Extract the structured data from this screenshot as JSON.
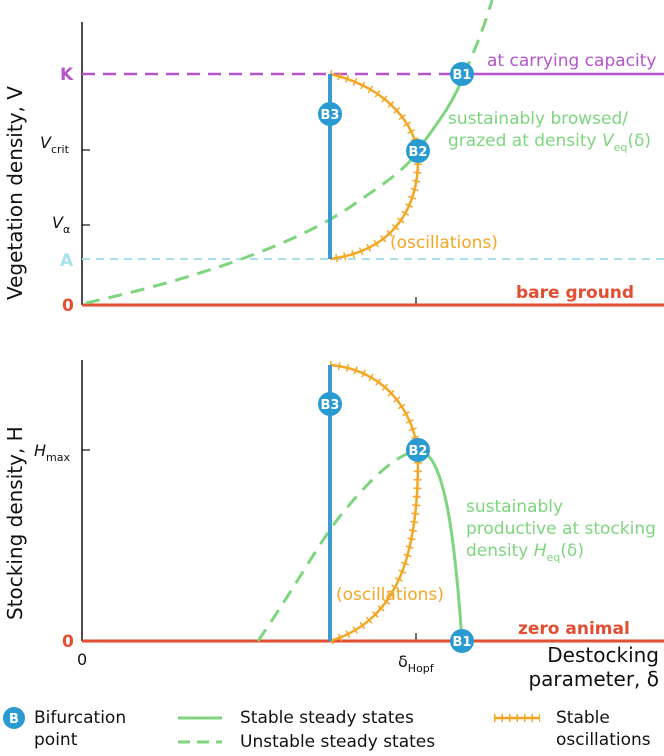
{
  "top_panel": {
    "y_axis_title": "Vegetation density, V",
    "y_ticks": {
      "K": "K",
      "Vcrit": "V",
      "Vcrit_sub": "crit",
      "Valpha": "V",
      "Valpha_sub": "α",
      "A": "A",
      "zero": "0"
    },
    "labels": {
      "carrying_capacity": "at carrying capacity",
      "browsed_line1": "sustainably browsed/",
      "browsed_line2_pre": "grazed at density ",
      "browsed_var": "V",
      "browsed_sub": "eq",
      "browsed_post": "(δ)",
      "oscillations": "(oscillations)",
      "bare_ground": "bare ground"
    }
  },
  "bottom_panel": {
    "y_axis_title": "Stocking density, H",
    "y_ticks": {
      "Hmax": "H",
      "Hmax_sub": "max",
      "zero": "0"
    },
    "labels": {
      "productive_line1": "sustainably",
      "productive_line2": "productive at stocking",
      "productive_line3_pre": "density ",
      "productive_var": "H",
      "productive_sub": "eq",
      "productive_post": "(δ)",
      "oscillations": "(oscillations)",
      "zero_animal": "zero animal"
    }
  },
  "x_axis": {
    "zero": "0",
    "hopf": "δ",
    "hopf_sub": "Hopf",
    "title_line1": "Destocking",
    "title_line2": "parameter, δ"
  },
  "bifurcations": {
    "B1": "B1",
    "B2": "B2",
    "B3": "B3"
  },
  "legend": {
    "bifurcation_icon": "B",
    "bifurcation_line1": "Bifurcation",
    "bifurcation_line2": "point",
    "stable": "Stable steady states",
    "unstable": "Unstable steady states",
    "oscillations_line1": "Stable",
    "oscillations_line2": "oscillations"
  },
  "colors": {
    "green": "#7dd67d",
    "orange": "#f5a623",
    "blue": "#3a9bd0",
    "red": "#e24e2f",
    "purple": "#b455c9",
    "light_blue": "#a8e0ee"
  }
}
